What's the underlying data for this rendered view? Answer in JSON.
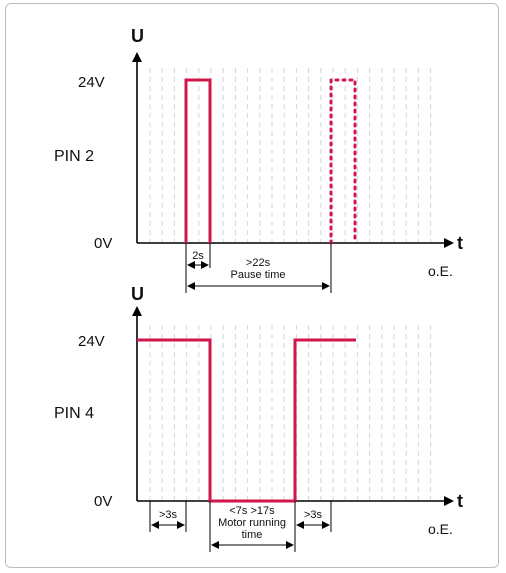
{
  "diagram": {
    "top": {
      "axis_title": "U",
      "level_high": "24V",
      "pin_label": "PIN 2",
      "level_low": "0V",
      "time_axis": "t",
      "unit_note": "o.E.",
      "dim_pulse": "2s",
      "dim_pause_value": ">22s",
      "dim_pause_text": "Pause time"
    },
    "bottom": {
      "axis_title": "U",
      "level_high": "24V",
      "pin_label": "PIN 4",
      "level_low": "0V",
      "time_axis": "t",
      "unit_note": "o.E.",
      "dim_before": ">3s",
      "dim_run_value": "<7s >17s",
      "dim_run_text_1": "Motor running",
      "dim_run_text_2": "time",
      "dim_after": ">3s"
    },
    "colors": {
      "signal": "#d0164a",
      "axis": "#000000",
      "grid": "#d6d6d6"
    }
  }
}
